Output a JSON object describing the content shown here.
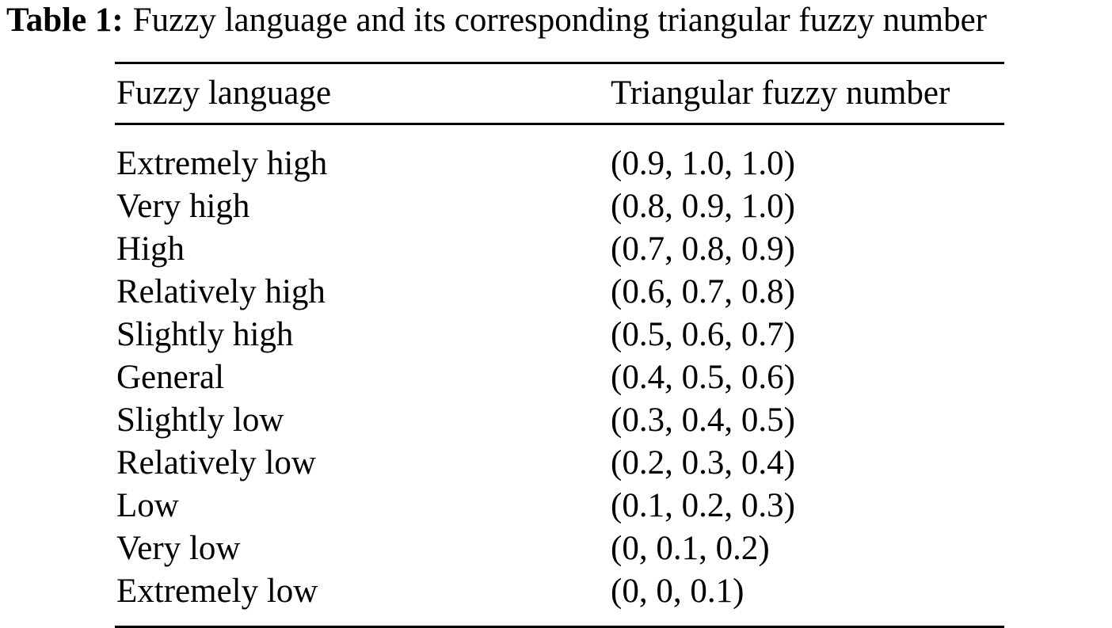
{
  "caption": {
    "label": "Table 1:",
    "text": "Fuzzy language and its corresponding triangular fuzzy number"
  },
  "table": {
    "headers": [
      "Fuzzy language",
      "Triangular fuzzy number"
    ],
    "rows": [
      [
        "Extremely high",
        "(0.9, 1.0, 1.0)"
      ],
      [
        "Very high",
        "(0.8, 0.9, 1.0)"
      ],
      [
        "High",
        "(0.7, 0.8, 0.9)"
      ],
      [
        "Relatively high",
        "(0.6, 0.7, 0.8)"
      ],
      [
        "Slightly high",
        "(0.5, 0.6, 0.7)"
      ],
      [
        "General",
        "(0.4, 0.5, 0.6)"
      ],
      [
        "Slightly low",
        "(0.3, 0.4, 0.5)"
      ],
      [
        "Relatively low",
        "(0.2, 0.3, 0.4)"
      ],
      [
        "Low",
        "(0.1, 0.2, 0.3)"
      ],
      [
        "Very low",
        "(0, 0.1, 0.2)"
      ],
      [
        "Extremely low",
        "(0, 0, 0.1)"
      ]
    ]
  }
}
